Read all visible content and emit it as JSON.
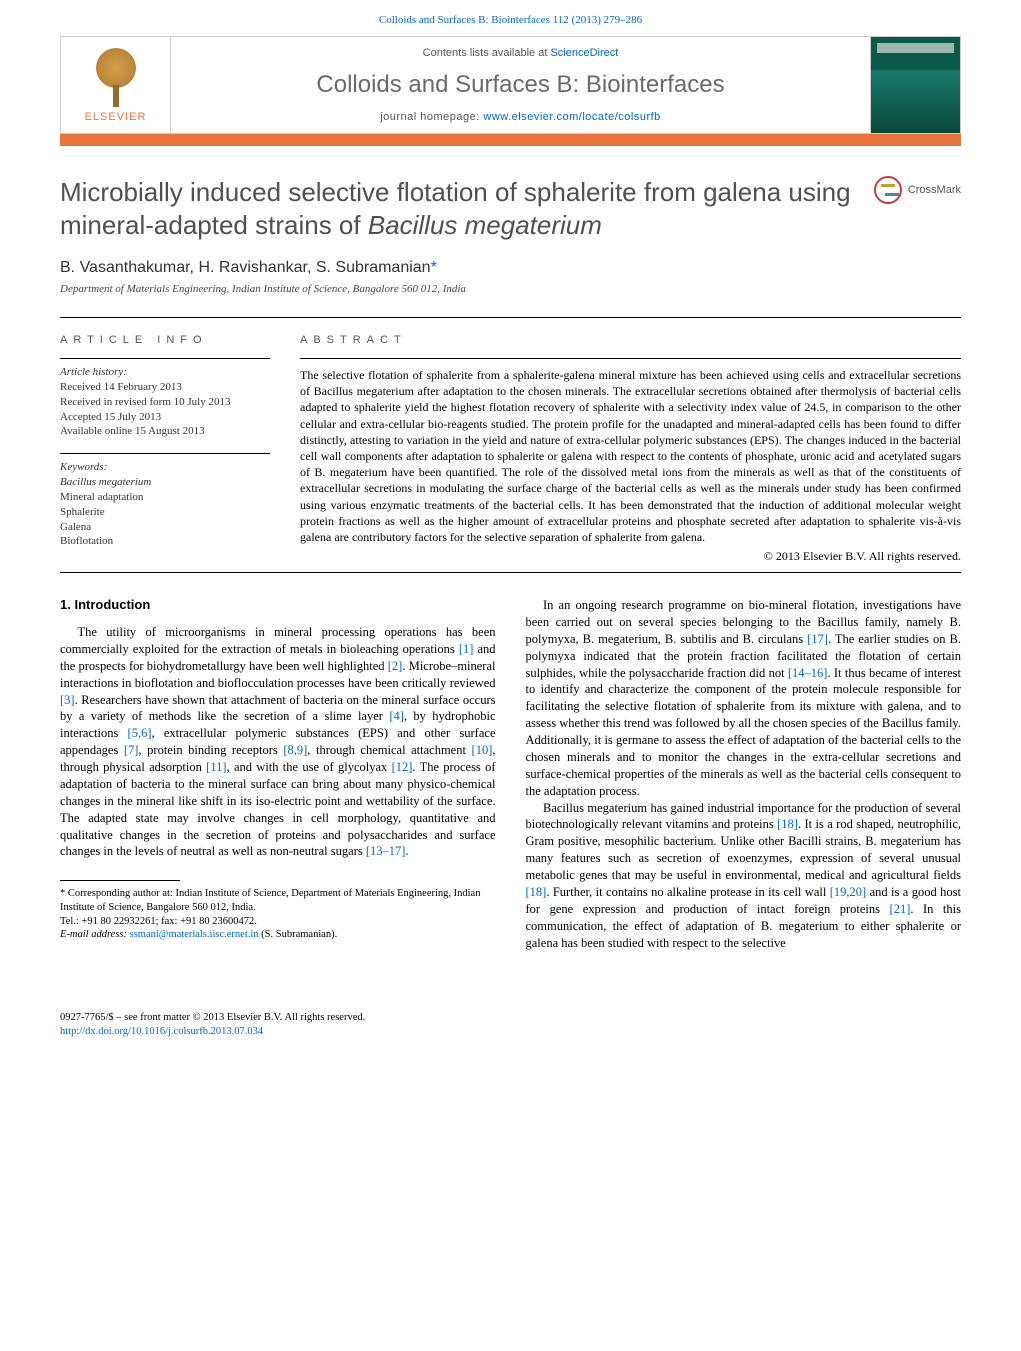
{
  "journal_link": "Colloids and Surfaces B: Biointerfaces 112 (2013) 279–286",
  "header": {
    "contents_prefix": "Contents lists available at ",
    "contents_link": "ScienceDirect",
    "journal_title": "Colloids and Surfaces B: Biointerfaces",
    "homepage_prefix": "journal homepage: ",
    "homepage_link": "www.elsevier.com/locate/colsurfb",
    "publisher": "ELSEVIER"
  },
  "crossmark": "CrossMark",
  "title_line1": "Microbially induced selective flotation of sphalerite from galena using",
  "title_line2_pre": "mineral-adapted strains of ",
  "title_line2_em": "Bacillus megaterium",
  "authors": "B. Vasanthakumar, H. Ravishankar, S. Subramanian",
  "corr_mark": "*",
  "affiliation": "Department of Materials Engineering, Indian Institute of Science, Bangalore 560 012, India",
  "labels": {
    "info": "article info",
    "abstract": "abstract"
  },
  "history": {
    "head": "Article history:",
    "received": "Received 14 February 2013",
    "revised": "Received in revised form 10 July 2013",
    "accepted": "Accepted 15 July 2013",
    "online": "Available online 15 August 2013"
  },
  "keywords": {
    "head": "Keywords:",
    "k1": "Bacillus megaterium",
    "k2": "Mineral adaptation",
    "k3": "Sphalerite",
    "k4": "Galena",
    "k5": "Bioflotation"
  },
  "abstract": "The selective flotation of sphalerite from a sphalerite-galena mineral mixture has been achieved using cells and extracellular secretions of Bacillus megaterium after adaptation to the chosen minerals. The extracellular secretions obtained after thermolysis of bacterial cells adapted to sphalerite yield the highest flotation recovery of sphalerite with a selectivity index value of 24.5, in comparison to the other cellular and extra-cellular bio-reagents studied. The protein profile for the unadapted and mineral-adapted cells has been found to differ distinctly, attesting to variation in the yield and nature of extra-cellular polymeric substances (EPS). The changes induced in the bacterial cell wall components after adaptation to sphalerite or galena with respect to the contents of phosphate, uronic acid and acetylated sugars of B. megaterium have been quantified. The role of the dissolved metal ions from the minerals as well as that of the constituents of extracellular secretions in modulating the surface charge of the bacterial cells as well as the minerals under study has been confirmed using various enzymatic treatments of the bacterial cells. It has been demonstrated that the induction of additional molecular weight protein fractions as well as the higher amount of extracellular proteins and phosphate secreted after adaptation to sphalerite vis-à-vis galena are contributory factors for the selective separation of sphalerite from galena.",
  "copyright": "© 2013 Elsevier B.V. All rights reserved.",
  "intro_heading": "1.  Introduction",
  "intro_p1_a": "The utility of microorganisms in mineral processing operations has been commercially exploited for the extraction of metals in bioleaching operations ",
  "ref1": "[1]",
  "intro_p1_b": " and the prospects for biohydrometallurgy have been well highlighted ",
  "ref2": "[2]",
  "intro_p1_c": ". Microbe–mineral interactions in bioflotation and bioflocculation processes have been critically reviewed ",
  "ref3": "[3]",
  "intro_p1_d": ". Researchers have shown that attachment of bacteria on the mineral surface occurs by a variety of methods like the secretion of a slime layer ",
  "ref4": "[4]",
  "intro_p1_e": ", by hydrophobic interactions ",
  "ref56": "[5,6]",
  "intro_p1_f": ", extracellular polymeric substances (EPS) and other surface appendages ",
  "ref7": "[7]",
  "intro_p1_g": ", protein binding receptors ",
  "ref89": "[8,9]",
  "intro_p1_h": ", through chemical attachment ",
  "ref10": "[10]",
  "intro_p1_i": ", through physical adsorption ",
  "ref11": "[11]",
  "intro_p1_j": ", and with the use of glycolyax ",
  "ref12": "[12]",
  "intro_p1_k": ". The process of adaptation of bacteria to the mineral surface can bring about many physico-chemical changes in the mineral like shift in its iso-electric point and wettability of the surface. The adapted state may involve changes in cell morphology, quantitative and qualitative changes in the secretion of proteins and polysaccharides and surface changes in the levels of neutral as well as non-neutral sugars ",
  "ref1317": "[13–17]",
  "intro_p1_l": ".",
  "col2_p1_a": "In an ongoing research programme on bio-mineral flotation, investigations have been carried out on several species belonging to the Bacillus family, namely B. polymyxa, B. megaterium, B. subtilis and B. circulans ",
  "ref17": "[17]",
  "col2_p1_b": ". The earlier studies on B. polymyxa indicated that the protein fraction facilitated the flotation of certain sulphides, while the polysaccharide fraction did not ",
  "ref1416": "[14–16]",
  "col2_p1_c": ". It thus became of interest to identify and characterize the component of the protein molecule responsible for facilitating the selective flotation of sphalerite from its mixture with galena, and to assess whether this trend was followed by all the chosen species of the Bacillus family. Additionally, it is germane to assess the effect of adaptation of the bacterial cells to the chosen minerals and to monitor the changes in the extra-cellular secretions and surface-chemical properties of the minerals as well as the bacterial cells consequent to the adaptation process.",
  "col2_p2_a": "Bacillus megaterium has gained industrial importance for the production of several biotechnologically relevant vitamins and proteins ",
  "ref18": "[18]",
  "col2_p2_b": ". It is a rod shaped, neutrophilic, Gram positive, mesophilic bacterium. Unlike other Bacilli strains, B. megaterium has many features such as secretion of exoenzymes, expression of several unusual metabolic genes that may be useful in environmental, medical and agricultural fields ",
  "col2_p2_c": ". Further, it contains no alkaline protease in its cell wall ",
  "ref1920": "[19,20]",
  "col2_p2_d": " and is a good host for gene expression and production of intact foreign proteins ",
  "ref21": "[21]",
  "col2_p2_e": ". In this communication, the effect of adaptation of B. megaterium to either sphalerite or galena has been studied with respect to the selective",
  "footnote": {
    "corr": "* Corresponding author at: Indian Institute of Science, Department of Materials Engineering, Indian Institute of Science, Bangalore 560 012, India.",
    "tel": "Tel.: +91 80 22932261; fax: +91 80 23600472.",
    "email_label": "E-mail address: ",
    "email": "ssmani@materials.iisc.ernet.in",
    "email_paren": " (S. Subramanian)."
  },
  "footer": {
    "line1": "0927-7765/$ – see front matter © 2013 Elsevier B.V. All rights reserved.",
    "doi": "http://dx.doi.org/10.1016/j.colsurfb.2013.07.034"
  }
}
